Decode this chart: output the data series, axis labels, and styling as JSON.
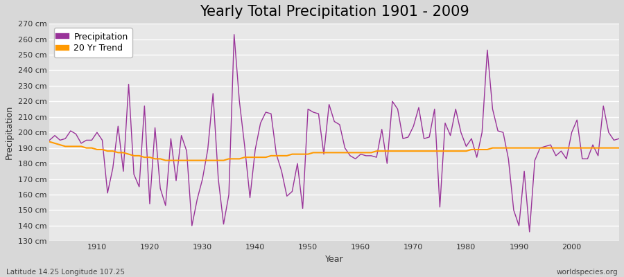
{
  "title": "Yearly Total Precipitation 1901 - 2009",
  "xlabel": "Year",
  "ylabel": "Precipitation",
  "subtitle_left": "Latitude 14.25 Longitude 107.25",
  "subtitle_right": "worldspecies.org",
  "ylim": [
    130,
    270
  ],
  "years": [
    1901,
    1902,
    1903,
    1904,
    1905,
    1906,
    1907,
    1908,
    1909,
    1910,
    1911,
    1912,
    1913,
    1914,
    1915,
    1916,
    1917,
    1918,
    1919,
    1920,
    1921,
    1922,
    1923,
    1924,
    1925,
    1926,
    1927,
    1928,
    1929,
    1930,
    1931,
    1932,
    1933,
    1934,
    1935,
    1936,
    1937,
    1938,
    1939,
    1940,
    1941,
    1942,
    1943,
    1944,
    1945,
    1946,
    1947,
    1948,
    1949,
    1950,
    1951,
    1952,
    1953,
    1954,
    1955,
    1956,
    1957,
    1958,
    1959,
    1960,
    1961,
    1962,
    1963,
    1964,
    1965,
    1966,
    1967,
    1968,
    1969,
    1970,
    1971,
    1972,
    1973,
    1974,
    1975,
    1976,
    1977,
    1978,
    1979,
    1980,
    1981,
    1982,
    1983,
    1984,
    1985,
    1986,
    1987,
    1988,
    1989,
    1990,
    1991,
    1992,
    1993,
    1994,
    1995,
    1996,
    1997,
    1998,
    1999,
    2000,
    2001,
    2002,
    2003,
    2004,
    2005,
    2006,
    2007,
    2008,
    2009
  ],
  "precipitation": [
    195,
    198,
    195,
    196,
    201,
    199,
    193,
    195,
    195,
    200,
    195,
    161,
    177,
    204,
    175,
    231,
    173,
    165,
    217,
    154,
    203,
    164,
    153,
    196,
    169,
    198,
    188,
    140,
    157,
    170,
    189,
    225,
    170,
    141,
    160,
    263,
    220,
    191,
    158,
    189,
    206,
    213,
    212,
    186,
    175,
    159,
    162,
    180,
    151,
    215,
    213,
    212,
    186,
    218,
    207,
    205,
    190,
    185,
    183,
    186,
    185,
    185,
    184,
    202,
    180,
    220,
    215,
    196,
    197,
    204,
    216,
    196,
    197,
    215,
    152,
    206,
    198,
    215,
    200,
    191,
    196,
    184,
    200,
    253,
    215,
    201,
    200,
    183,
    150,
    140,
    175,
    136,
    182,
    190,
    191,
    192,
    185,
    188,
    183,
    200,
    208,
    183,
    183,
    192,
    185,
    217,
    200,
    195,
    196
  ],
  "trend": [
    194,
    193,
    192,
    191,
    191,
    191,
    191,
    190,
    190,
    189,
    189,
    188,
    188,
    187,
    187,
    186,
    185,
    185,
    184,
    184,
    183,
    183,
    182,
    182,
    182,
    182,
    182,
    182,
    182,
    182,
    182,
    182,
    182,
    182,
    183,
    183,
    183,
    184,
    184,
    184,
    184,
    184,
    185,
    185,
    185,
    185,
    186,
    186,
    186,
    186,
    187,
    187,
    187,
    187,
    187,
    187,
    187,
    187,
    187,
    187,
    187,
    187,
    188,
    188,
    188,
    188,
    188,
    188,
    188,
    188,
    188,
    188,
    188,
    188,
    188,
    188,
    188,
    188,
    188,
    188,
    189,
    189,
    189,
    189,
    190,
    190,
    190,
    190,
    190,
    190,
    190,
    190,
    190,
    190,
    190,
    190,
    190,
    190,
    190,
    190,
    190,
    190,
    190,
    190,
    190,
    190,
    190,
    190,
    190
  ],
  "precip_color": "#993399",
  "trend_color": "#FF9900",
  "bg_color": "#D8D8D8",
  "plot_bg_color": "#E8E8E8",
  "grid_color": "#FFFFFF",
  "xticks": [
    1910,
    1920,
    1930,
    1940,
    1950,
    1960,
    1970,
    1980,
    1990,
    2000
  ],
  "ytick_min": 130,
  "ytick_max": 270,
  "ytick_step": 10,
  "title_fontsize": 15,
  "label_fontsize": 9,
  "tick_fontsize": 8,
  "legend_fontsize": 9,
  "fig_width": 9.0,
  "fig_height": 4.0,
  "dpi": 100
}
